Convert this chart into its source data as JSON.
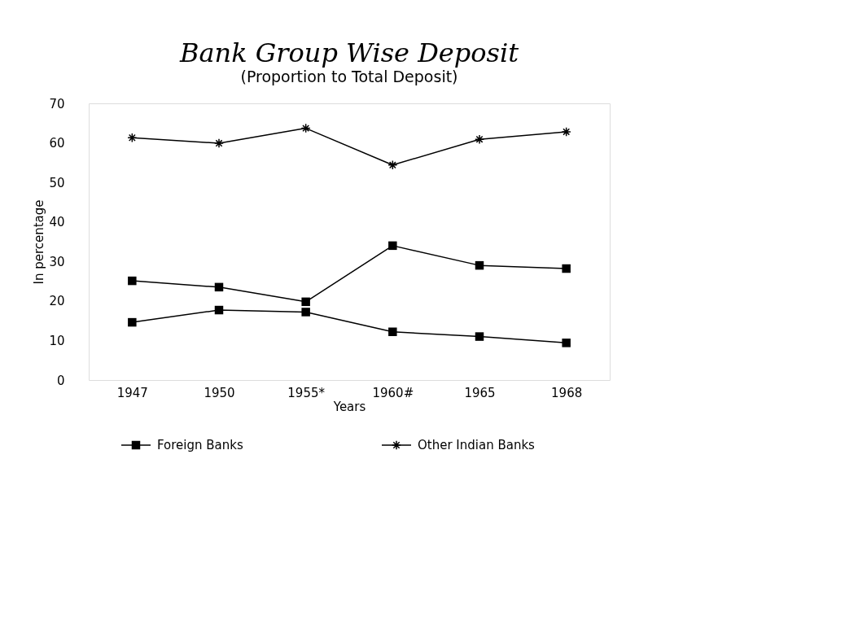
{
  "chart_data": {
    "type": "line",
    "title": "Bank Group Wise Deposit",
    "subtitle": "(Proportion to Total Deposit)",
    "xlabel": "Years",
    "ylabel": "In percentage",
    "categories": [
      "1947",
      "1950",
      "1955*",
      "1960#",
      "1965",
      "1968"
    ],
    "series": [
      {
        "name": "Foreign Banks",
        "color": "#000000",
        "marker": "square",
        "values": [
          14.6,
          17.7,
          17.2,
          12.2,
          11.0,
          9.4
        ]
      },
      {
        "color": "#000000",
        "marker": "square",
        "values": [
          25.1,
          23.5,
          19.8,
          34.0,
          29.0,
          28.2
        ]
      },
      {
        "name": "Other Indian Banks",
        "color": "#000000",
        "marker": "cross",
        "values": [
          61.3,
          59.9,
          63.7,
          54.4,
          60.9,
          62.8
        ]
      }
    ],
    "ylim": [
      0,
      70
    ],
    "yticks": [
      0,
      10,
      20,
      30,
      40,
      50,
      60,
      70
    ],
    "grid": false,
    "legend": "bottom",
    "line_style": "solid"
  }
}
